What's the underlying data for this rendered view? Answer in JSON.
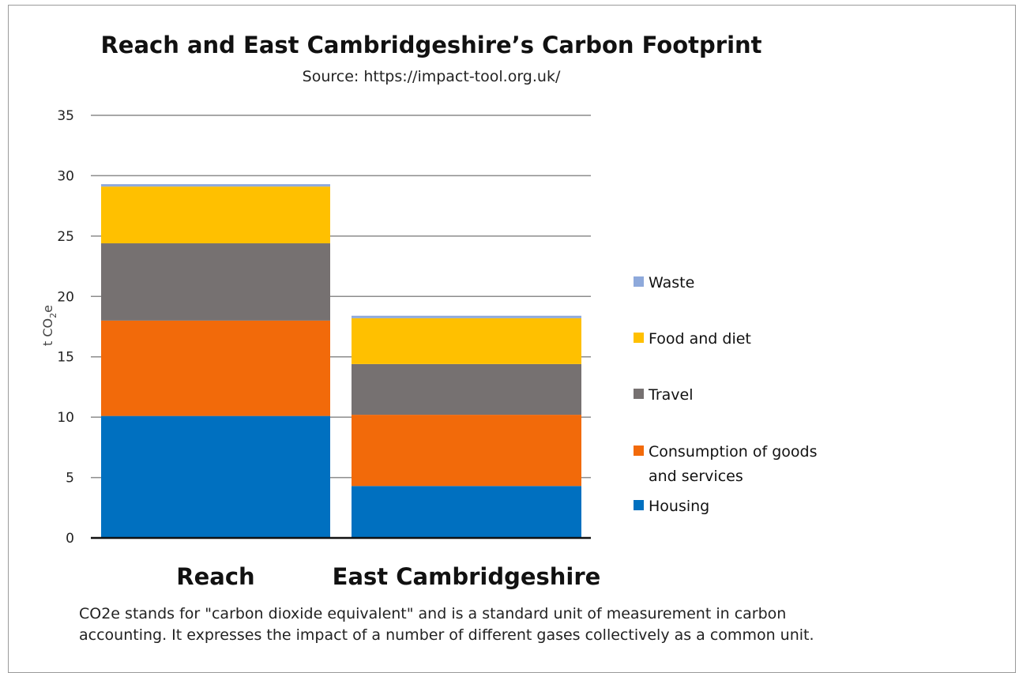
{
  "chart_data": {
    "type": "bar",
    "stacked": true,
    "title": "Reach and East Cambridgeshire’s Carbon Footprint",
    "subtitle": "Source: https://impact-tool.org.uk/",
    "ylabel": "t CO2e",
    "ylabel_main": "t CO",
    "ylabel_sub": "2",
    "ylabel_suffix": "e",
    "ylim": [
      0,
      35
    ],
    "yticks": [
      0,
      5,
      10,
      15,
      20,
      25,
      30,
      35
    ],
    "yticks_labels": [
      "0",
      "5",
      "10",
      "15",
      "20",
      "25",
      "30",
      "35"
    ],
    "grid": true,
    "legend_position": "right",
    "categories": [
      "Reach",
      "East Cambridgeshire"
    ],
    "series": [
      {
        "name": "Housing",
        "color": "#0070C0",
        "values": [
          10.1,
          4.3
        ]
      },
      {
        "name": "Consumption of goods and services",
        "name_lines": [
          "Consumption of goods",
          "and services"
        ],
        "color": "#F26A0A",
        "values": [
          7.9,
          5.9
        ]
      },
      {
        "name": "Travel",
        "color": "#767171",
        "values": [
          6.4,
          4.2
        ]
      },
      {
        "name": "Food and diet",
        "color": "#FFC000",
        "values": [
          4.7,
          3.8
        ]
      },
      {
        "name": "Waste",
        "color": "#8EA9DB",
        "values": [
          0.2,
          0.2
        ]
      }
    ]
  },
  "footnote": {
    "line1": "CO2e stands for \"carbon dioxide equivalent\" and is a standard unit of measurement in carbon",
    "line2": "accounting. It expresses the impact of a number of different gases collectively as a common unit."
  }
}
